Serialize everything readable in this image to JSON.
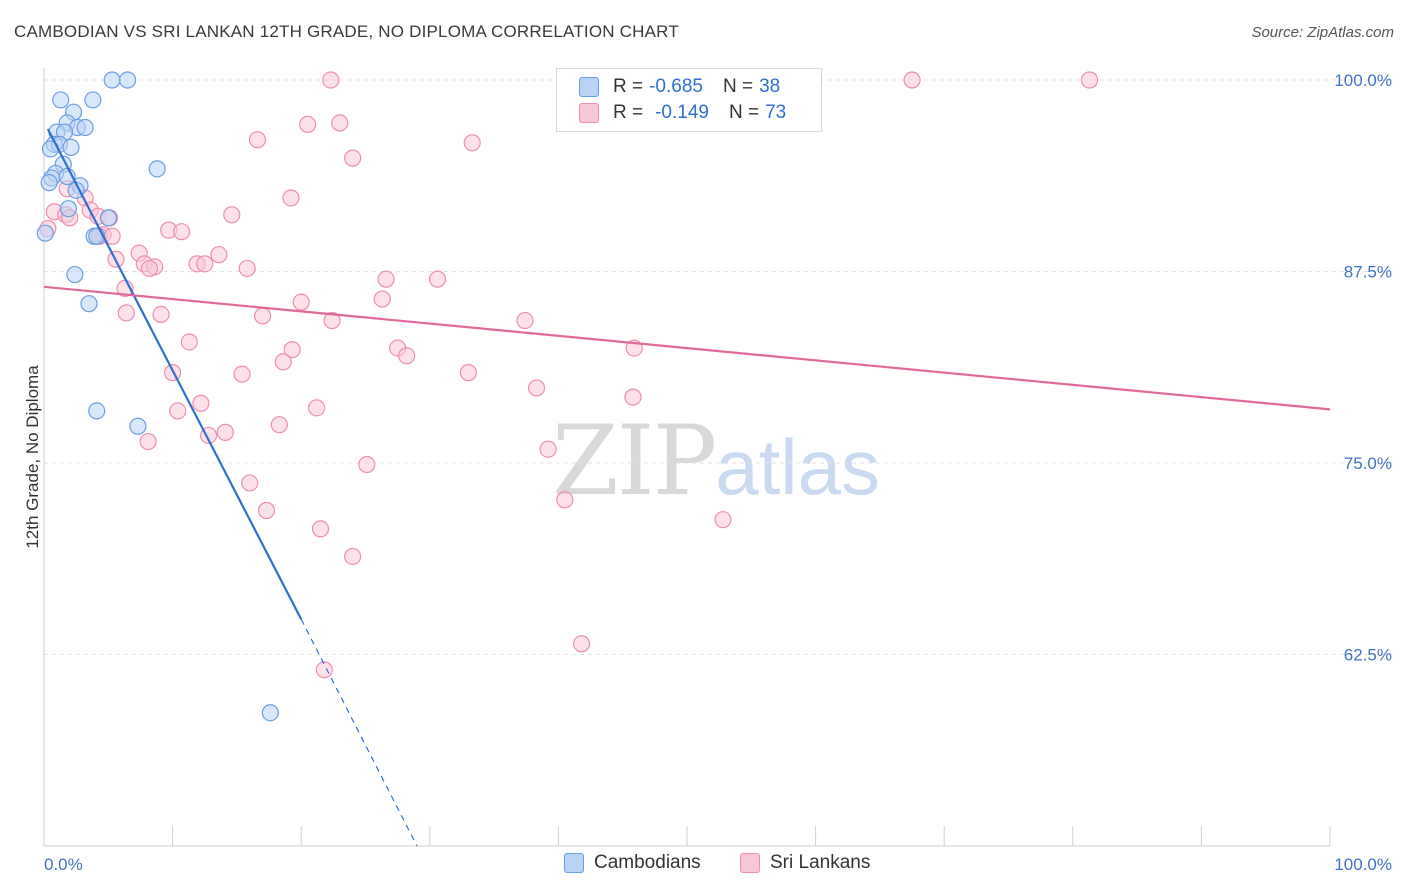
{
  "title": "CAMBODIAN VS SRI LANKAN 12TH GRADE, NO DIPLOMA CORRELATION CHART",
  "source": "Source: ZipAtlas.com",
  "watermark": {
    "zip": "ZIP",
    "atlas": "atlas"
  },
  "legend": {
    "rows": [
      {
        "r_label": "R =",
        "r_value": "-0.685",
        "n_label": "N =",
        "n_value": "38"
      },
      {
        "r_label": "R =",
        "r_value": "-0.149",
        "n_label": "N =",
        "n_value": "73"
      }
    ]
  },
  "bottom_legend": [
    "Cambodians",
    "Sri Lankans"
  ],
  "colors": {
    "blue_fill": "#b9d3f5",
    "blue_stroke": "#6a9fe0",
    "blue_line": "#2f6fd0",
    "pink_fill": "#f9c8d7",
    "pink_stroke": "#ec8fb0",
    "pink_line": "#e0699a"
  },
  "chart_data": {
    "type": "scatter",
    "title": "CAMBODIAN VS SRI LANKAN 12TH GRADE, NO DIPLOMA CORRELATION CHART",
    "xlabel": "",
    "ylabel": "12th Grade, No Diploma",
    "xlim": [
      0,
      100
    ],
    "ylim": [
      50,
      100
    ],
    "x_tick_labels": [
      "0.0%",
      "100.0%"
    ],
    "y_ticks": [
      62.5,
      75.0,
      87.5,
      100.0
    ],
    "y_tick_labels": [
      "62.5%",
      "75.0%",
      "87.5%",
      "100.0%"
    ],
    "series": [
      {
        "name": "Cambodians",
        "r": -0.685,
        "n": 38,
        "trend": {
          "x0": 0.3,
          "y0": 96.8,
          "x1": 20.0,
          "y1": 64.8,
          "dash_x1": 29.0,
          "dash_y1": 50.0
        },
        "points": [
          [
            5.3,
            100.0
          ],
          [
            6.5,
            100.0
          ],
          [
            1.3,
            98.7
          ],
          [
            3.8,
            98.7
          ],
          [
            2.3,
            97.9
          ],
          [
            1.8,
            97.2
          ],
          [
            2.6,
            96.9
          ],
          [
            3.2,
            96.9
          ],
          [
            1.0,
            96.6
          ],
          [
            1.6,
            96.6
          ],
          [
            0.8,
            95.8
          ],
          [
            1.2,
            95.8
          ],
          [
            2.1,
            95.6
          ],
          [
            0.5,
            95.5
          ],
          [
            1.5,
            94.5
          ],
          [
            8.8,
            94.2
          ],
          [
            0.9,
            93.9
          ],
          [
            0.6,
            93.6
          ],
          [
            1.8,
            93.7
          ],
          [
            2.8,
            93.1
          ],
          [
            0.4,
            93.3
          ],
          [
            2.5,
            92.8
          ],
          [
            1.9,
            91.6
          ],
          [
            5.0,
            91.0
          ],
          [
            0.1,
            90.0
          ],
          [
            3.9,
            89.8
          ],
          [
            4.1,
            89.8
          ],
          [
            2.4,
            87.3
          ],
          [
            3.5,
            85.4
          ],
          [
            4.1,
            78.4
          ],
          [
            7.3,
            77.4
          ],
          [
            17.6,
            58.7
          ]
        ]
      },
      {
        "name": "Sri Lankans",
        "r": -0.149,
        "n": 73,
        "trend": {
          "x0": 0.0,
          "y0": 86.5,
          "x1": 100.0,
          "y1": 78.5
        },
        "points": [
          [
            22.3,
            100.0
          ],
          [
            67.5,
            100.0
          ],
          [
            81.3,
            100.0
          ],
          [
            20.5,
            97.1
          ],
          [
            23.0,
            97.2
          ],
          [
            16.6,
            96.1
          ],
          [
            33.3,
            95.9
          ],
          [
            24.0,
            94.9
          ],
          [
            19.2,
            92.3
          ],
          [
            1.8,
            92.9
          ],
          [
            3.2,
            92.3
          ],
          [
            3.6,
            91.5
          ],
          [
            0.8,
            91.4
          ],
          [
            1.7,
            91.2
          ],
          [
            2.0,
            91.0
          ],
          [
            4.2,
            91.1
          ],
          [
            5.1,
            91.0
          ],
          [
            14.6,
            91.2
          ],
          [
            9.7,
            90.2
          ],
          [
            10.7,
            90.1
          ],
          [
            0.3,
            90.3
          ],
          [
            4.6,
            89.9
          ],
          [
            4.3,
            89.8
          ],
          [
            5.3,
            89.8
          ],
          [
            7.4,
            88.7
          ],
          [
            5.6,
            88.3
          ],
          [
            7.8,
            88.0
          ],
          [
            8.6,
            87.8
          ],
          [
            11.9,
            88.0
          ],
          [
            12.5,
            88.0
          ],
          [
            13.6,
            88.6
          ],
          [
            15.8,
            87.7
          ],
          [
            8.2,
            87.7
          ],
          [
            26.6,
            87.0
          ],
          [
            30.6,
            87.0
          ],
          [
            6.3,
            86.4
          ],
          [
            20.0,
            85.5
          ],
          [
            26.3,
            85.7
          ],
          [
            6.4,
            84.8
          ],
          [
            9.1,
            84.7
          ],
          [
            17.0,
            84.6
          ],
          [
            22.4,
            84.3
          ],
          [
            37.4,
            84.3
          ],
          [
            11.3,
            82.9
          ],
          [
            19.3,
            82.4
          ],
          [
            27.5,
            82.5
          ],
          [
            28.2,
            82.0
          ],
          [
            45.9,
            82.5
          ],
          [
            18.6,
            81.6
          ],
          [
            10.0,
            80.9
          ],
          [
            15.4,
            80.8
          ],
          [
            33.0,
            80.9
          ],
          [
            38.3,
            79.9
          ],
          [
            45.8,
            79.3
          ],
          [
            12.2,
            78.9
          ],
          [
            10.4,
            78.4
          ],
          [
            21.2,
            78.6
          ],
          [
            18.3,
            77.5
          ],
          [
            14.1,
            77.0
          ],
          [
            12.8,
            76.8
          ],
          [
            8.1,
            76.4
          ],
          [
            39.2,
            75.9
          ],
          [
            25.1,
            74.9
          ],
          [
            16.0,
            73.7
          ],
          [
            40.5,
            72.6
          ],
          [
            17.3,
            71.9
          ],
          [
            52.8,
            71.3
          ],
          [
            21.5,
            70.7
          ],
          [
            24.0,
            68.9
          ],
          [
            41.8,
            63.2
          ],
          [
            21.8,
            61.5
          ]
        ]
      }
    ],
    "grid": true,
    "legend_position": "top-center"
  }
}
